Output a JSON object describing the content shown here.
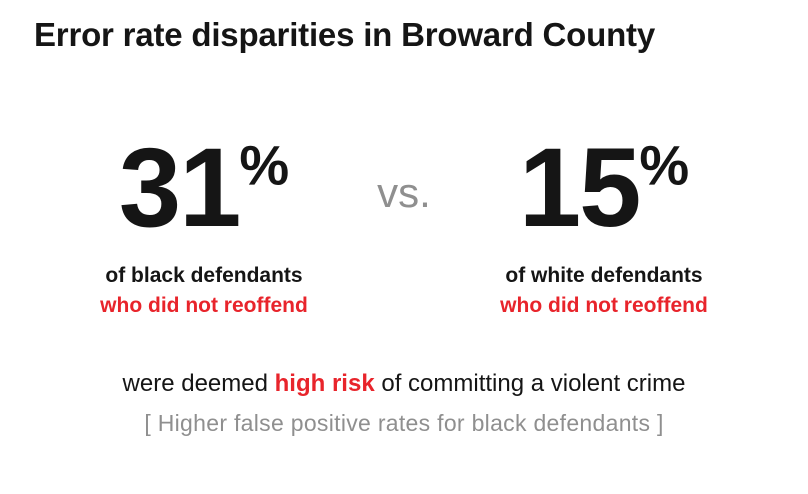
{
  "title": "Error rate disparities in Broward County",
  "comparison": {
    "left": {
      "value": "31",
      "percent_sign": "%",
      "label_line1": "of black defendants",
      "label_line2": "who did not reoffend"
    },
    "vs": "vs.",
    "right": {
      "value": "15",
      "percent_sign": "%",
      "label_line1": "of white defendants",
      "label_line2": "who did not reoffend"
    }
  },
  "footer": {
    "pre": "were deemed ",
    "highlight": "high risk",
    "post": " of committing a violent crime",
    "note": "[ Higher false positive rates for black defendants ]"
  },
  "colors": {
    "accent_red": "#e8242b",
    "text_black": "#151515",
    "muted_gray": "#8f8f8f"
  },
  "chart_data": {
    "type": "bar",
    "title": "Error rate disparities in Broward County",
    "categories": [
      "black defendants who did not reoffend",
      "white defendants who did not reoffend"
    ],
    "values": [
      31,
      15
    ],
    "unit": "%",
    "ylabel": "percent deemed high risk of committing a violent crime",
    "ylim": [
      0,
      100
    ],
    "grid": false,
    "legend": "none",
    "annotations": [
      "Higher false positive rates for black defendants"
    ]
  }
}
